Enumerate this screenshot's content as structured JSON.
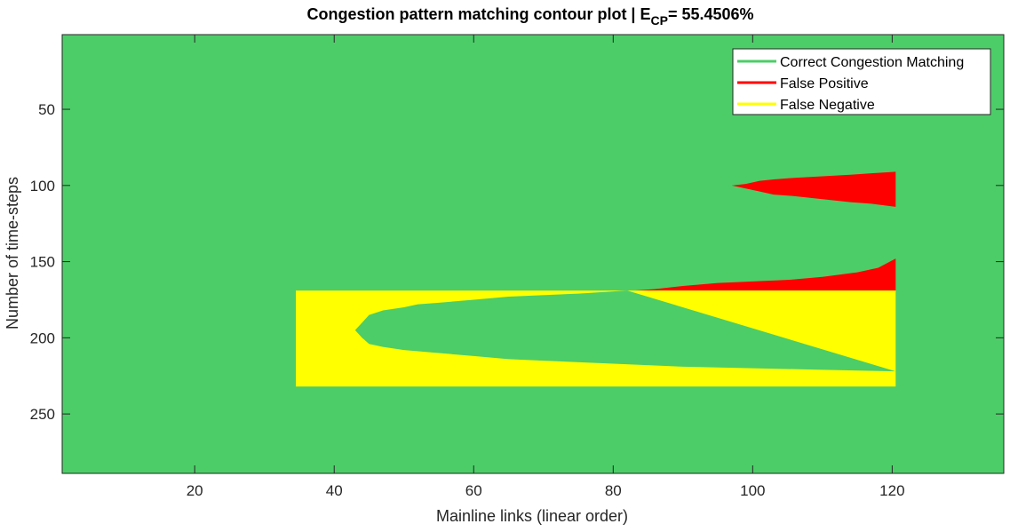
{
  "chart_data": {
    "type": "heatmap",
    "title": {
      "prefix": "Congestion pattern matching contour plot | E",
      "subscript": "CP",
      "suffix": "= 55.4506%"
    },
    "xlabel": "Mainline links (linear order)",
    "ylabel": "Number of time-steps",
    "xlim": [
      1,
      136
    ],
    "ylim": [
      1,
      289
    ],
    "y_reversed": true,
    "xticks": [
      20,
      40,
      60,
      80,
      100,
      120
    ],
    "yticks": [
      50,
      100,
      150,
      200,
      250
    ],
    "xtick_labels": [
      "20",
      "40",
      "60",
      "80",
      "100",
      "120"
    ],
    "ytick_labels": [
      "50",
      "100",
      "150",
      "200",
      "250"
    ],
    "grid": false,
    "legend_position": "top-right",
    "background_category": "Correct Congestion Matching",
    "series": [
      {
        "name": "Correct Congestion Matching",
        "color": "#4ccd68"
      },
      {
        "name": "False Positive",
        "color": "#ff0000"
      },
      {
        "name": "False Negative",
        "color": "#ffff00"
      }
    ],
    "regions": [
      {
        "category": "False Positive",
        "x_start": 97,
        "x_end": 120.5,
        "upper_boundary": [
          [
            97,
            100
          ],
          [
            99,
            99
          ],
          [
            101,
            97
          ],
          [
            103,
            96
          ],
          [
            106,
            95
          ],
          [
            110,
            94
          ],
          [
            114,
            93
          ],
          [
            117,
            92
          ],
          [
            120.5,
            91
          ]
        ],
        "lower_boundary": [
          [
            97,
            100
          ],
          [
            99,
            102
          ],
          [
            101,
            104
          ],
          [
            103,
            106
          ],
          [
            106,
            107
          ],
          [
            110,
            109
          ],
          [
            114,
            111
          ],
          [
            117,
            112
          ],
          [
            120.5,
            114
          ]
        ]
      },
      {
        "category": "False Positive",
        "x_start": 83,
        "x_end": 120.5,
        "upper_boundary": [
          [
            83,
            169
          ],
          [
            86,
            168
          ],
          [
            90,
            166
          ],
          [
            95,
            164
          ],
          [
            100,
            163
          ],
          [
            105,
            162
          ],
          [
            110,
            160
          ],
          [
            115,
            157
          ],
          [
            118,
            154
          ],
          [
            120.5,
            148
          ]
        ],
        "lower_boundary": [
          [
            83,
            169
          ],
          [
            120.5,
            169
          ]
        ]
      },
      {
        "category": "False Negative",
        "x_start": 34.5,
        "x_end": 120.5,
        "top": 169,
        "bottom": 232,
        "inner_correct_top": [
          [
            82,
            169
          ],
          [
            75,
            171
          ],
          [
            65,
            173
          ],
          [
            60,
            175
          ],
          [
            55,
            177
          ],
          [
            52,
            178
          ],
          [
            50,
            180
          ],
          [
            47,
            182
          ],
          [
            45,
            185
          ],
          [
            44,
            190
          ],
          [
            43,
            195
          ]
        ],
        "inner_correct_bottom": [
          [
            43,
            195
          ],
          [
            44,
            200
          ],
          [
            45,
            204
          ],
          [
            47,
            206
          ],
          [
            50,
            208
          ],
          [
            55,
            210
          ],
          [
            60,
            212
          ],
          [
            65,
            214
          ],
          [
            70,
            215
          ],
          [
            80,
            217
          ],
          [
            90,
            219
          ],
          [
            100,
            220
          ],
          [
            110,
            221
          ],
          [
            120.5,
            222
          ]
        ]
      }
    ]
  }
}
